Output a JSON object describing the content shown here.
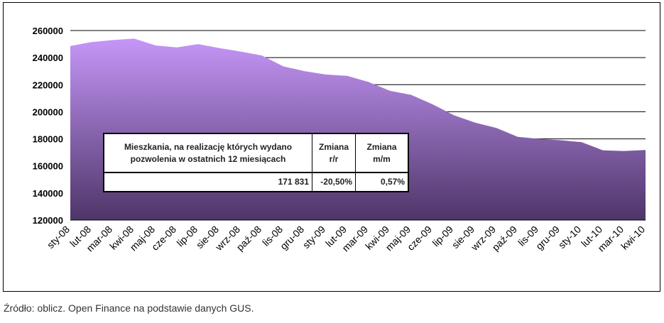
{
  "chart_data": {
    "type": "area",
    "categories": [
      "sty-08",
      "lut-08",
      "mar-08",
      "kwi-08",
      "maj-08",
      "cze-08",
      "lip-08",
      "sie-08",
      "wrz-08",
      "paź-08",
      "lis-08",
      "gru-08",
      "sty-09",
      "lut-09",
      "mar-09",
      "kwi-09",
      "maj-09",
      "cze-09",
      "lip-09",
      "sie-09",
      "wrz-09",
      "paź-09",
      "lis-09",
      "gru-09",
      "sty-10",
      "lut-10",
      "mar-10",
      "kwi-10"
    ],
    "values": [
      248500,
      251500,
      253000,
      254000,
      249000,
      247500,
      250000,
      247000,
      244500,
      241500,
      233500,
      230000,
      227500,
      226500,
      222000,
      215500,
      212500,
      205500,
      197500,
      192000,
      188000,
      181500,
      180000,
      179000,
      177500,
      171500,
      171000,
      171831
    ],
    "ylim": [
      120000,
      260000
    ],
    "yticks": [
      "260000",
      "240000",
      "220000",
      "200000",
      "180000",
      "160000",
      "140000",
      "120000"
    ],
    "ytick_values": [
      260000,
      240000,
      220000,
      200000,
      180000,
      160000,
      140000,
      120000
    ],
    "colors": {
      "fill_top": "#c596f8",
      "fill_bottom": "#4e3568",
      "grid": "#000000"
    }
  },
  "table": {
    "header_main": "Mieszkania, na realizację których wydano pozwolenia w ostatnich 12 miesiącach",
    "header_rr": "Zmiana r/r",
    "header_mm": "Zmiana m/m",
    "value_main": "171 831",
    "value_rr": "-20,50%",
    "value_mm": "0,57%"
  },
  "source": "Źródło: oblicz. Open Finance na podstawie danych GUS."
}
